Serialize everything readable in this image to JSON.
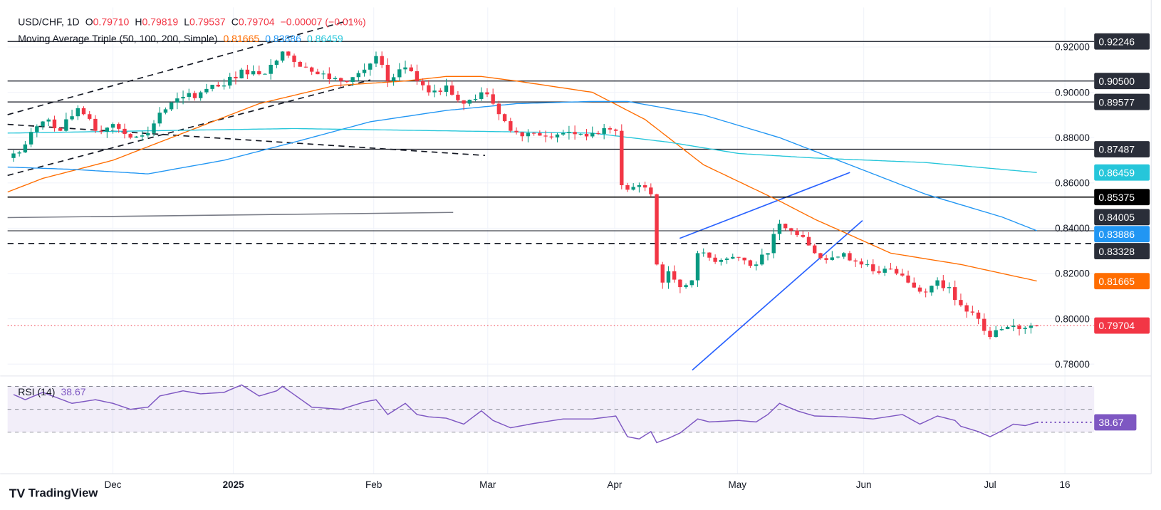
{
  "header": {
    "symbol": "USD/CHF, 1D",
    "o_label": "O",
    "o": "0.79710",
    "h_label": "H",
    "h": "0.79819",
    "l_label": "L",
    "l": "0.79537",
    "c_label": "C",
    "c": "0.79704",
    "change": "−0.00007 (−0.01%)",
    "ma_title": "Moving Average Triple (50, 100, 200, Simple)",
    "ma50": "0.81665",
    "ma100": "0.83886",
    "ma200": "0.86459",
    "rsi_title": "RSI (14)",
    "rsi_value": "38.67"
  },
  "colors": {
    "up": "#089981",
    "down": "#f23645",
    "ma50": "#ff6d00",
    "ma100": "#2196f3",
    "ma200": "#26c6da",
    "rsi": "#7e57c2",
    "label_dark": "#2a2e39"
  },
  "price_axis": [
    "0.92000",
    "0.90000",
    "0.88000",
    "0.86000",
    "0.84000",
    "0.82000",
    "0.80000",
    "0.78000"
  ],
  "price_labels": [
    {
      "text": "0.92246",
      "value": 0.92246,
      "bg": "#2a2e39"
    },
    {
      "text": "0.90500",
      "value": 0.905,
      "bg": "#2a2e39"
    },
    {
      "text": "0.89577",
      "value": 0.89577,
      "bg": "#2a2e39"
    },
    {
      "text": "0.87487",
      "value": 0.87487,
      "bg": "#2a2e39"
    },
    {
      "text": "0.86459",
      "value": 0.86459,
      "bg": "#26c6da",
      "fg": "#131722"
    },
    {
      "text": "0.85375",
      "value": 0.85375,
      "bg": "#000000"
    },
    {
      "text": "0.84005",
      "value": 0.84005,
      "bg": "#2a2e39"
    },
    {
      "text": "0.83886",
      "value": 0.83886,
      "bg": "#2196f3"
    },
    {
      "text": "0.83328",
      "value": 0.83328,
      "bg": "#2a2e39"
    },
    {
      "text": "0.81665",
      "value": 0.81665,
      "bg": "#ff6d00"
    },
    {
      "text": "0.79704",
      "value": 0.79704,
      "bg": "#f23645"
    }
  ],
  "time_axis": [
    {
      "label": "Dec",
      "bar": 17
    },
    {
      "label": "2025",
      "bar": 37.6,
      "bold": true
    },
    {
      "label": "Feb",
      "bar": 61.6
    },
    {
      "label": "Mar",
      "bar": 81.1
    },
    {
      "label": "Apr",
      "bar": 102.8
    },
    {
      "label": "May",
      "bar": 123.8
    },
    {
      "label": "Jun",
      "bar": 145.4
    },
    {
      "label": "Jul",
      "bar": 167
    },
    {
      "label": "16",
      "bar": 179.8
    }
  ],
  "branding": "TradingView",
  "chart_data": {
    "type": "candlestick",
    "title": "USD/CHF, 1D",
    "ylim": [
      0.775,
      0.93
    ],
    "close_anchors": [
      [
        0,
        0.873
      ],
      [
        2,
        0.877
      ],
      [
        4,
        0.885
      ],
      [
        6,
        0.888
      ],
      [
        8,
        0.883
      ],
      [
        11,
        0.893
      ],
      [
        14,
        0.883
      ],
      [
        17,
        0.886
      ],
      [
        20,
        0.88
      ],
      [
        23,
        0.882
      ],
      [
        25,
        0.891
      ],
      [
        29,
        0.898
      ],
      [
        32,
        0.9
      ],
      [
        36,
        0.903
      ],
      [
        39,
        0.91
      ],
      [
        42,
        0.908
      ],
      [
        45,
        0.914
      ],
      [
        46,
        0.918
      ],
      [
        50,
        0.911
      ],
      [
        52,
        0.908
      ],
      [
        56,
        0.905
      ],
      [
        60,
        0.91
      ],
      [
        62,
        0.916
      ],
      [
        64,
        0.905
      ],
      [
        67,
        0.911
      ],
      [
        69,
        0.905
      ],
      [
        71,
        0.9
      ],
      [
        74,
        0.903
      ],
      [
        77,
        0.895
      ],
      [
        80,
        0.9
      ],
      [
        82,
        0.895
      ],
      [
        85,
        0.883
      ],
      [
        89,
        0.882
      ],
      [
        94,
        0.882
      ],
      [
        99,
        0.882
      ],
      [
        103,
        0.883
      ],
      [
        104,
        0.859
      ],
      [
        105,
        0.857
      ],
      [
        107,
        0.859
      ],
      [
        109,
        0.855
      ],
      [
        110,
        0.824
      ],
      [
        111,
        0.816
      ],
      [
        112,
        0.821
      ],
      [
        114,
        0.814
      ],
      [
        116,
        0.817
      ],
      [
        117,
        0.829
      ],
      [
        119,
        0.827
      ],
      [
        121,
        0.826
      ],
      [
        124,
        0.827
      ],
      [
        127,
        0.824
      ],
      [
        129,
        0.829
      ],
      [
        131,
        0.842
      ],
      [
        132,
        0.84
      ],
      [
        134,
        0.837
      ],
      [
        137,
        0.829
      ],
      [
        139,
        0.826
      ],
      [
        142,
        0.829
      ],
      [
        145,
        0.824
      ],
      [
        147,
        0.821
      ],
      [
        150,
        0.822
      ],
      [
        153,
        0.816
      ],
      [
        155,
        0.812
      ],
      [
        158,
        0.817
      ],
      [
        160,
        0.814
      ],
      [
        162,
        0.806
      ],
      [
        165,
        0.8
      ],
      [
        167,
        0.792
      ],
      [
        168,
        0.795
      ],
      [
        171,
        0.797
      ],
      [
        173,
        0.796
      ],
      [
        175,
        0.79704
      ]
    ],
    "series": [
      {
        "name": "SMA 50",
        "anchors": [
          [
            -1,
            0.856
          ],
          [
            5,
            0.862
          ],
          [
            17,
            0.87
          ],
          [
            29,
            0.882
          ],
          [
            42,
            0.895
          ],
          [
            55,
            0.903
          ],
          [
            67,
            0.905
          ],
          [
            74,
            0.907
          ],
          [
            80,
            0.907
          ],
          [
            86,
            0.905
          ],
          [
            99,
            0.9
          ],
          [
            108,
            0.888
          ],
          [
            118,
            0.868
          ],
          [
            131,
            0.852
          ],
          [
            137,
            0.844
          ],
          [
            150,
            0.829
          ],
          [
            162,
            0.824
          ],
          [
            175,
            0.8167
          ]
        ]
      },
      {
        "name": "SMA 100",
        "anchors": [
          [
            -1,
            0.867
          ],
          [
            10,
            0.866
          ],
          [
            23,
            0.864
          ],
          [
            36,
            0.87
          ],
          [
            48,
            0.878
          ],
          [
            61,
            0.887
          ],
          [
            74,
            0.892
          ],
          [
            86,
            0.895
          ],
          [
            99,
            0.896
          ],
          [
            105,
            0.896
          ],
          [
            118,
            0.89
          ],
          [
            131,
            0.88
          ],
          [
            143,
            0.868
          ],
          [
            156,
            0.855
          ],
          [
            169,
            0.845
          ],
          [
            175,
            0.8389
          ]
        ]
      },
      {
        "name": "SMA 200",
        "anchors": [
          [
            -1,
            0.882
          ],
          [
            23,
            0.883
          ],
          [
            48,
            0.884
          ],
          [
            74,
            0.883
          ],
          [
            99,
            0.882
          ],
          [
            112,
            0.878
          ],
          [
            124,
            0.873
          ],
          [
            137,
            0.871
          ],
          [
            156,
            0.869
          ],
          [
            175,
            0.8646
          ]
        ]
      }
    ],
    "rsi": {
      "name": "RSI (14)",
      "levels": [
        70,
        50,
        30
      ],
      "anchors": [
        [
          0,
          62.9
        ],
        [
          2,
          58.4
        ],
        [
          5,
          64.8
        ],
        [
          10,
          55.2
        ],
        [
          14,
          58.4
        ],
        [
          17,
          55.2
        ],
        [
          20,
          50
        ],
        [
          23,
          51.9
        ],
        [
          25,
          61.6
        ],
        [
          29,
          66.1
        ],
        [
          32,
          63.5
        ],
        [
          36,
          64.8
        ],
        [
          39,
          71.3
        ],
        [
          42,
          61.6
        ],
        [
          45,
          66.1
        ],
        [
          46,
          70
        ],
        [
          51,
          51.9
        ],
        [
          56,
          50
        ],
        [
          60,
          56.4
        ],
        [
          62,
          58.4
        ],
        [
          64,
          45.5
        ],
        [
          67,
          55.2
        ],
        [
          69,
          45.5
        ],
        [
          71,
          43.5
        ],
        [
          74,
          42.3
        ],
        [
          77,
          37.1
        ],
        [
          80,
          48.7
        ],
        [
          82,
          40.3
        ],
        [
          85,
          33.9
        ],
        [
          89,
          37.7
        ],
        [
          94,
          41.6
        ],
        [
          99,
          41.6
        ],
        [
          103,
          44.2
        ],
        [
          105,
          26.1
        ],
        [
          107,
          24.2
        ],
        [
          109,
          30.6
        ],
        [
          110,
          21
        ],
        [
          112,
          24.8
        ],
        [
          114,
          29.4
        ],
        [
          117,
          41.6
        ],
        [
          119,
          39
        ],
        [
          124,
          40.3
        ],
        [
          127,
          39
        ],
        [
          129,
          45.5
        ],
        [
          131,
          55.2
        ],
        [
          134,
          48.7
        ],
        [
          137,
          44.2
        ],
        [
          142,
          43.5
        ],
        [
          147,
          41.6
        ],
        [
          152,
          45.5
        ],
        [
          155,
          37.1
        ],
        [
          158,
          44.2
        ],
        [
          161,
          40.3
        ],
        [
          162,
          35.2
        ],
        [
          165,
          30.6
        ],
        [
          167,
          26.1
        ],
        [
          169,
          31.3
        ],
        [
          171,
          37.1
        ],
        [
          173,
          35.8
        ],
        [
          175,
          38.67
        ]
      ]
    }
  }
}
